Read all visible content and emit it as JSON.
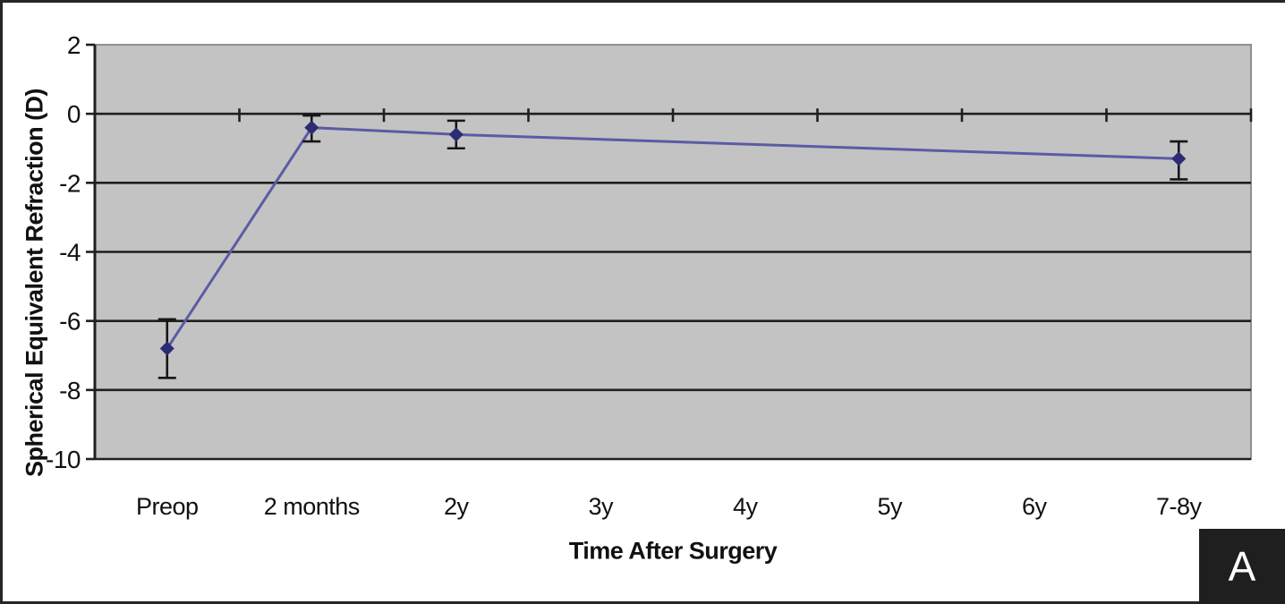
{
  "figure": {
    "panel_label": "A"
  },
  "chart_data": {
    "type": "line",
    "title": "",
    "xlabel": "Time After Surgery",
    "ylabel": "Spherical Equivalent Refraction (D)",
    "categories": [
      "Preop",
      "2 months",
      "2y",
      "3y",
      "4y",
      "5y",
      "6y",
      "7-8y"
    ],
    "ylim": [
      -10,
      2
    ],
    "y_ticks": [
      2,
      0,
      -2,
      -4,
      -6,
      -8,
      -10
    ],
    "grid": "horizontal",
    "legend": "none",
    "series": [
      {
        "marker": "diamond",
        "error_bars": true,
        "points": [
          {
            "category": "Preop",
            "value": -6.8,
            "error_upper": -5.95,
            "error_lower": -7.65
          },
          {
            "category": "2 months",
            "value": -0.4,
            "error_upper": -0.05,
            "error_lower": -0.8
          },
          {
            "category": "2y",
            "value": -0.6,
            "error_upper": -0.2,
            "error_lower": -1.0
          },
          {
            "category": "7-8y",
            "value": -1.3,
            "error_upper": -0.8,
            "error_lower": -1.9
          }
        ]
      }
    ]
  },
  "colors": {
    "plot_bg": "#c3c3c3",
    "plot_border": "#8f8f8f",
    "gridline": "#1f1f1f",
    "axis": "#1f1f1f",
    "text": "#111111",
    "series_line": "#5b5ba6",
    "marker": "#2c2c74",
    "error_bar": "#161616",
    "badge_bg": "#1f1f1f",
    "badge_text": "#ffffff",
    "figure_border": "#262626"
  }
}
